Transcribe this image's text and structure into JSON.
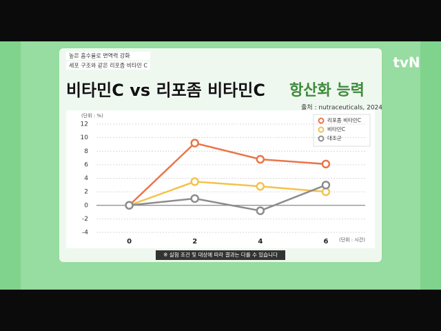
{
  "logo": "tvN",
  "tags": [
    "높은 흡수율로 면역력 강화",
    "세포 구조와 같은 리포좀 비타민 C"
  ],
  "footnote": "※ 실험 조건 및 대상에 따라 결과는 다를 수 있습니다",
  "chart_data": {
    "type": "line",
    "title": "비타민C vs 리포좀 비타민C",
    "title_highlight": "항산화 능력",
    "source": "출처 : nutraceuticals, 2024",
    "ylabel": "(단위 : %)",
    "xlabel": "(단위 : 시간)",
    "x": [
      0,
      2,
      4,
      6
    ],
    "xlim": [
      -1,
      7.2
    ],
    "xticks": [
      0,
      2,
      4,
      6
    ],
    "ylim": [
      -4,
      12
    ],
    "yticks": [
      12,
      10,
      8,
      6,
      4,
      2,
      0,
      -2,
      -4
    ],
    "grid": true,
    "legend": "upper right",
    "series": [
      {
        "name": "리포좀 비타민C",
        "color": "#ea7448",
        "values": [
          0,
          9.2,
          6.8,
          6.1
        ]
      },
      {
        "name": "비타민C",
        "color": "#f3c24a",
        "values": [
          0,
          3.5,
          2.8,
          2.0
        ]
      },
      {
        "name": "대조군",
        "color": "#8c8c8c",
        "values": [
          0,
          1.0,
          -0.8,
          3.0
        ]
      }
    ]
  }
}
